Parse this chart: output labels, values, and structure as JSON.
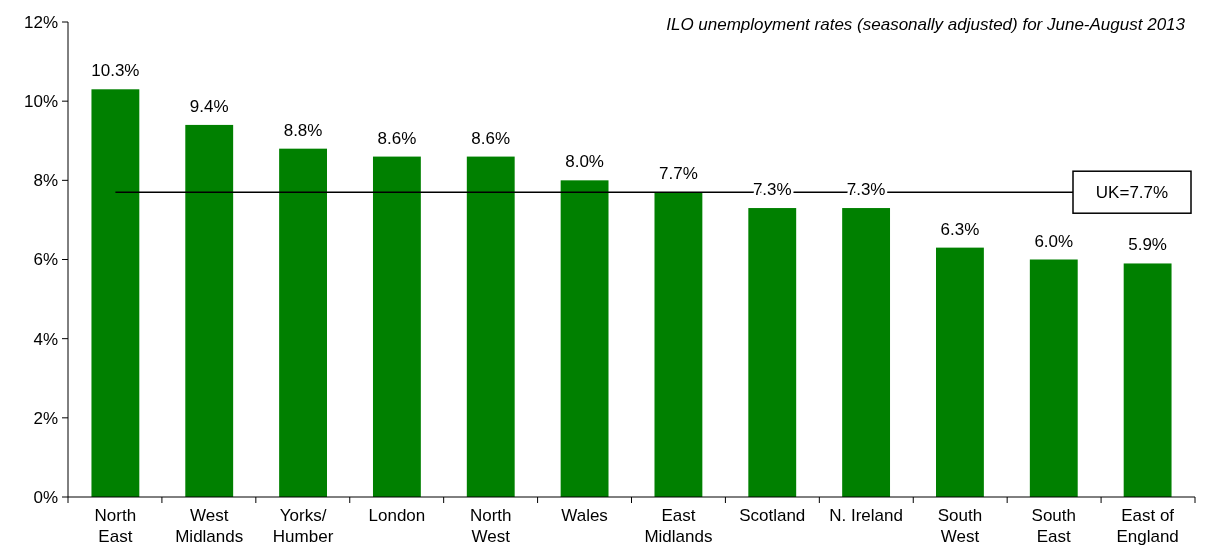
{
  "chart_data": {
    "type": "bar",
    "title": "ILO unemployment rates (seasonally adjusted) for June-August 2013",
    "categories": [
      "North\nEast",
      "West\nMidlands",
      "Yorks/\nHumber",
      "London",
      "North\nWest",
      "Wales",
      "East\nMidlands",
      "Scotland",
      "N. Ireland",
      "South\nWest",
      "South\nEast",
      "East of\nEngland"
    ],
    "values": [
      10.3,
      9.4,
      8.8,
      8.6,
      8.6,
      8.0,
      7.7,
      7.3,
      7.3,
      6.3,
      6.0,
      5.9
    ],
    "value_labels": [
      "10.3%",
      "9.4%",
      "8.8%",
      "8.6%",
      "8.6%",
      "8.0%",
      "7.7%",
      "7.3%",
      "7.3%",
      "6.3%",
      "6.0%",
      "5.9%"
    ],
    "color": "#008000",
    "ylim": [
      0,
      12
    ],
    "yticks": [
      {
        "value": 0,
        "label": "0%"
      },
      {
        "value": 2,
        "label": "2%"
      },
      {
        "value": 4,
        "label": "4%"
      },
      {
        "value": 6,
        "label": "6%"
      },
      {
        "value": 8,
        "label": "8%"
      },
      {
        "value": 10,
        "label": "10%"
      },
      {
        "value": 12,
        "label": "12%"
      }
    ],
    "ref_lines": [
      {
        "axis": "y",
        "value": 7.7,
        "label": "UK=7.7%",
        "color": "#000000"
      }
    ],
    "grid": false
  }
}
